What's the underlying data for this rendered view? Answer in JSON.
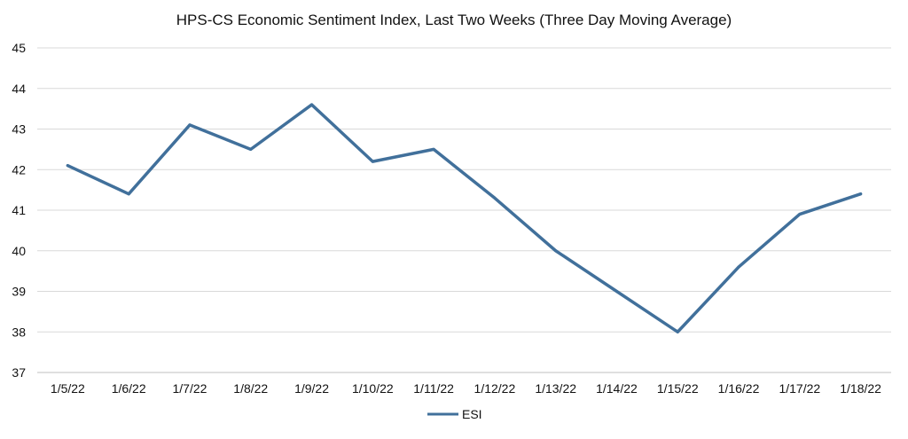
{
  "chart_data": {
    "type": "line",
    "title": "HPS-CS Economic Sentiment Index, Last Two Weeks (Three Day Moving Average)",
    "xlabel": "",
    "ylabel": "",
    "categories": [
      "1/5/22",
      "1/6/22",
      "1/7/22",
      "1/8/22",
      "1/9/22",
      "1/10/22",
      "1/11/22",
      "1/12/22",
      "1/13/22",
      "1/14/22",
      "1/15/22",
      "1/16/22",
      "1/17/22",
      "1/18/22"
    ],
    "ylim": [
      37,
      45
    ],
    "yticks": [
      "37",
      "38",
      "39",
      "40",
      "41",
      "42",
      "43",
      "44",
      "45"
    ],
    "series": [
      {
        "name": "ESI",
        "values": [
          42.1,
          41.4,
          43.1,
          42.5,
          43.6,
          42.2,
          42.5,
          41.3,
          40.0,
          39.0,
          38.0,
          39.6,
          40.9,
          41.4
        ],
        "color": "#41709b"
      }
    ],
    "grid": true,
    "legend": "bottom"
  }
}
